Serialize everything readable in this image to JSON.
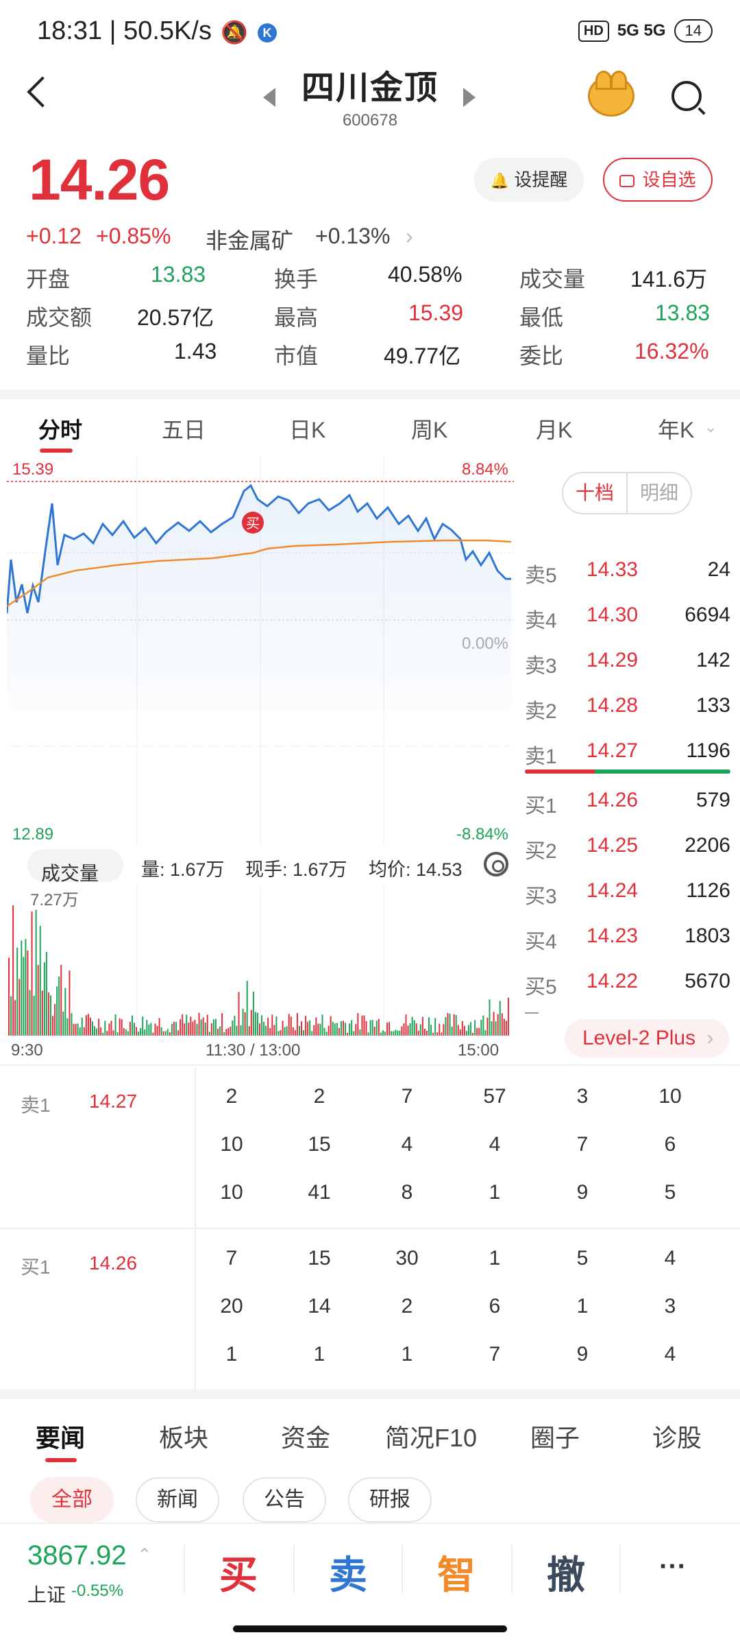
{
  "status_bar": {
    "time": "18:31 | 50.5K/s",
    "signal": "5G  5G",
    "battery": "14",
    "hd": "HD"
  },
  "header": {
    "title": "四川金顶",
    "code": "600678"
  },
  "quote": {
    "price": "14.26",
    "change": "+0.12",
    "change_pct": "+0.85%",
    "sector_name": "非金属矿",
    "sector_pct": "+0.13%",
    "alert_label": "设提醒",
    "fav_label": "设自选",
    "stats": [
      {
        "l1": "开盘",
        "v1": "13.83",
        "l2": "换手",
        "v2": "40.58%",
        "l3": "成交量",
        "v3": "141.6万"
      },
      {
        "l1": "成交额",
        "v1": "20.57亿",
        "l2": "最高",
        "v2": "15.39",
        "l3": "最低",
        "v3": "13.83"
      },
      {
        "l1": "量比",
        "v1": "1.43",
        "l2": "市值",
        "v2": "49.77亿",
        "l3": "委比",
        "v3": "16.32%"
      }
    ]
  },
  "chart_tabs": [
    "分时",
    "五日",
    "日K",
    "周K",
    "月K",
    "年K"
  ],
  "chart": {
    "high_label": "15.39",
    "high_pct": "8.84%",
    "low_label": "12.89",
    "low_pct": "-8.84%",
    "mid_pct": "0.00%",
    "buy_marker": "买",
    "vol_max": "7.27万",
    "x_labels": [
      "9:30",
      "11:30 / 13:00",
      "15:00"
    ],
    "accent_red": "#e0303a",
    "accent_green": "#1ea35a",
    "line_blue": "#2f76d2",
    "avg_orange": "#f08a2b"
  },
  "volume_bar": {
    "selector": "成交量",
    "vol": "量: 1.67万",
    "now": "现手: 1.67万",
    "avg": "均价: 14.53"
  },
  "order_book": {
    "toggle": [
      "十档",
      "明细"
    ],
    "asks": [
      {
        "label": "卖5",
        "price": "14.33",
        "vol": "24"
      },
      {
        "label": "卖4",
        "price": "14.30",
        "vol": "6694"
      },
      {
        "label": "卖3",
        "price": "14.29",
        "vol": "142"
      },
      {
        "label": "卖2",
        "price": "14.28",
        "vol": "133"
      },
      {
        "label": "卖1",
        "price": "14.27",
        "vol": "1196"
      }
    ],
    "bids": [
      {
        "label": "买1",
        "price": "14.26",
        "vol": "579"
      },
      {
        "label": "买2",
        "price": "14.25",
        "vol": "2206"
      },
      {
        "label": "买3",
        "price": "14.24",
        "vol": "1126"
      },
      {
        "label": "买4",
        "price": "14.23",
        "vol": "1803"
      },
      {
        "label": "买5",
        "price": "14.22",
        "vol": "5670"
      }
    ],
    "level2": "Level-2 Plus"
  },
  "ticks": {
    "sell": {
      "label": "卖1",
      "price": "14.27",
      "rows": [
        [
          "2",
          "2",
          "7",
          "57",
          "3",
          "10"
        ],
        [
          "10",
          "15",
          "4",
          "4",
          "7",
          "6"
        ],
        [
          "10",
          "41",
          "8",
          "1",
          "9",
          "5"
        ]
      ]
    },
    "buy": {
      "label": "买1",
      "price": "14.26",
      "rows": [
        [
          "7",
          "15",
          "30",
          "1",
          "5",
          "4"
        ],
        [
          "20",
          "14",
          "2",
          "6",
          "1",
          "3"
        ],
        [
          "1",
          "1",
          "1",
          "7",
          "9",
          "4"
        ]
      ]
    }
  },
  "news_tabs": [
    "要闻",
    "板块",
    "资金",
    "简况F10",
    "圈子",
    "诊股"
  ],
  "chips": [
    "全部",
    "新闻",
    "公告",
    "研报"
  ],
  "bottom": {
    "index_value": "3867.92",
    "index_name": "上证",
    "index_chg": "-0.55%",
    "actions": [
      "买",
      "卖",
      "智",
      "撤",
      "···"
    ]
  }
}
